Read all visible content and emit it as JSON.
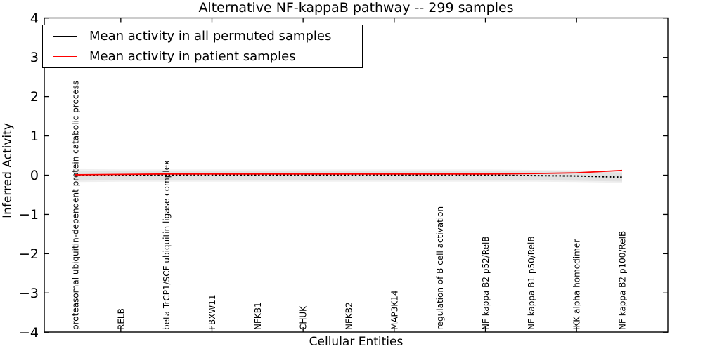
{
  "figure": {
    "background": "#ffffff",
    "frame_color": "#000000"
  },
  "legend": {
    "position": "upper left",
    "items": [
      {
        "name": "permuted",
        "label": "Mean activity in all permuted samples",
        "color": "#000000"
      },
      {
        "name": "patient",
        "label": "Mean activity in patient samples",
        "color": "#ff0000"
      }
    ]
  },
  "chart_data": {
    "type": "line",
    "title": "Alternative NF-kappaB pathway -- 299 samples",
    "xlabel": "Cellular Entities",
    "ylabel": "Inferred Activity",
    "ylim": [
      -4,
      4
    ],
    "ytick_values": [
      4,
      3,
      2,
      1,
      0,
      -1,
      -2,
      -3,
      -4
    ],
    "grid": false,
    "legend_position": "upper left",
    "categories": [
      "proteasomal ubiquitin-dependent protein catabolic process",
      "RELB",
      "beta TrCP1/SCF ubiquitin ligase complex",
      "FBXW11",
      "NFKB1",
      "CHUK",
      "NFKB2",
      "MAP3K14",
      "regulation of B cell activation",
      "NF kappa B2 p52/RelB",
      "NF kappa B1 p50/RelB",
      "IKK alpha homodimer",
      "NF kappa B2 p100/RelB"
    ],
    "xticks_major_indices": [
      1,
      3,
      5,
      7,
      9,
      11
    ],
    "series": [
      {
        "name": "Mean activity in all permuted samples",
        "color": "#000000",
        "line_style": "dashed",
        "values": [
          0.0,
          0.0,
          0.0,
          0.0,
          0.0,
          0.0,
          0.0,
          0.0,
          0.0,
          0.0,
          -0.01,
          -0.02,
          -0.05
        ]
      },
      {
        "name": "Mean activity in patient samples",
        "color": "#ff0000",
        "line_style": "solid",
        "values": [
          0.01,
          0.02,
          0.03,
          0.03,
          0.03,
          0.03,
          0.03,
          0.03,
          0.03,
          0.03,
          0.04,
          0.06,
          0.12
        ]
      }
    ],
    "band": {
      "name": "permuted samples spread",
      "color": "#e2e2e2",
      "outer_color": "#f0f0f0",
      "upper": [
        0.12,
        0.11,
        0.11,
        0.11,
        0.11,
        0.11,
        0.11,
        0.11,
        0.11,
        0.11,
        0.1,
        0.09,
        0.07
      ],
      "lower": [
        -0.14,
        -0.13,
        -0.13,
        -0.13,
        -0.13,
        -0.13,
        -0.13,
        -0.13,
        -0.13,
        -0.13,
        -0.13,
        -0.14,
        -0.16
      ]
    }
  }
}
